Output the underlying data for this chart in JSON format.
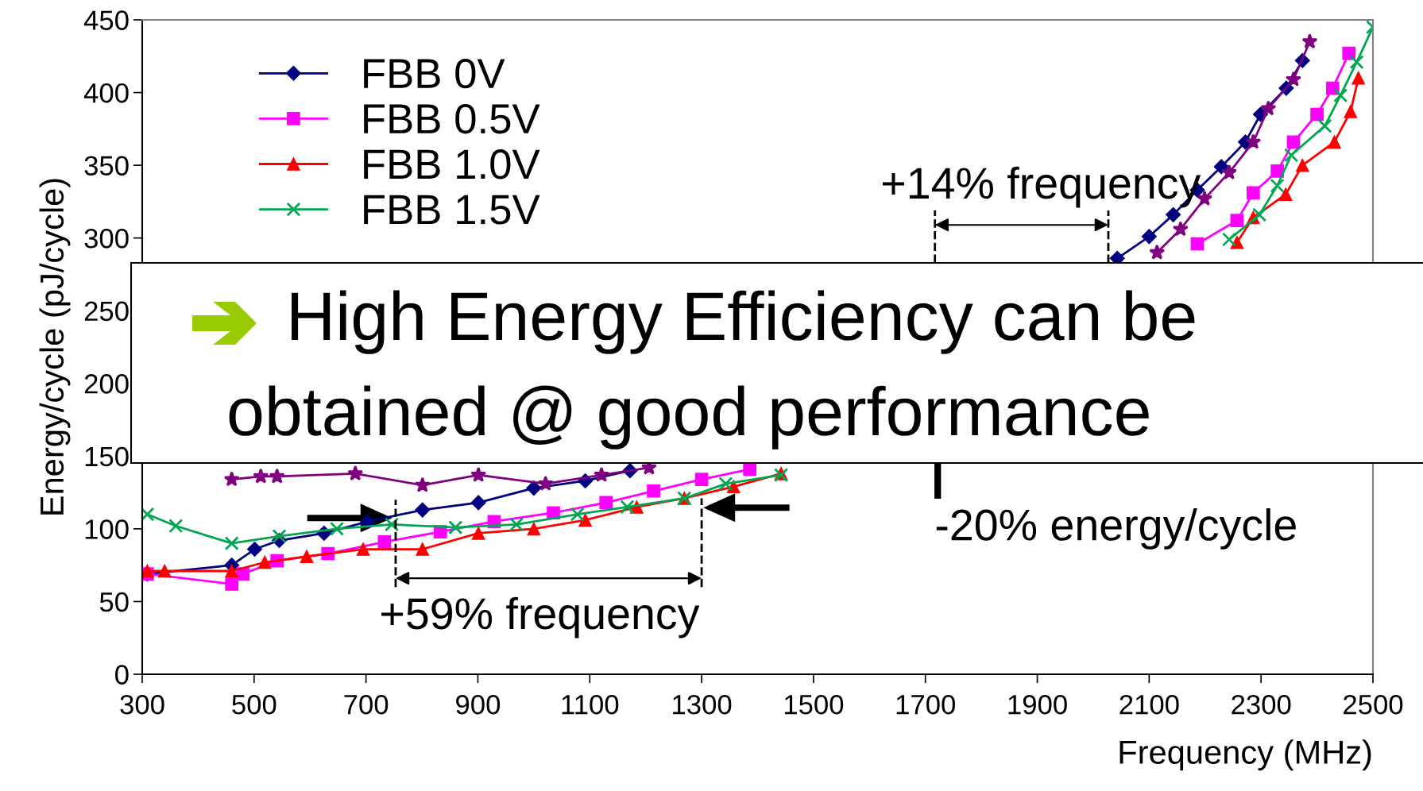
{
  "chart_data": {
    "type": "line",
    "xlabel": "Frequency (MHz)",
    "ylabel": "Energy/cycle (pJ/cycle)",
    "xlim": [
      300,
      2500
    ],
    "xticks": [
      300,
      500,
      700,
      900,
      1100,
      1300,
      1500,
      1700,
      1900,
      2100,
      2300,
      2500
    ],
    "ylim": [
      0,
      450
    ],
    "yticks": [
      0,
      50,
      100,
      150,
      200,
      250,
      300,
      350,
      400,
      450
    ],
    "grid": false,
    "legend": "top left",
    "line_style": "solid",
    "series": [
      {
        "name": "FBB 0V",
        "color": "#000080",
        "marker": "diamond",
        "x": [
          309,
          460,
          501,
          545,
          625,
          703,
          801,
          901,
          1000,
          1092,
          1172,
          null,
          2043,
          2100,
          2143,
          2186,
          2229,
          2272,
          2299,
          2345,
          2374
        ],
        "values": [
          69,
          75,
          86,
          92,
          97,
          105,
          113,
          118,
          128,
          133,
          140,
          null,
          286,
          301,
          316,
          333,
          349,
          366,
          385,
          403,
          422
        ]
      },
      {
        "name": "FBB 0.5V",
        "color": "#ff00ff",
        "marker": "square",
        "x": [
          309,
          460,
          480,
          541,
          632,
          733,
          833,
          929,
          1035,
          1129,
          1214,
          1300,
          1386,
          null,
          2186,
          2257,
          2286,
          2329,
          2358,
          2400,
          2428,
          2457
        ],
        "values": [
          69,
          62,
          69,
          78,
          83,
          91,
          98,
          105,
          111,
          118,
          126,
          134,
          141,
          null,
          296,
          312,
          331,
          346,
          366,
          385,
          403,
          427
        ]
      },
      {
        "name": "FBB 1.0V",
        "color": "#ff0000",
        "marker": "triangle",
        "x": [
          309,
          340,
          460,
          519,
          594,
          695,
          801,
          901,
          1000,
          1092,
          1184,
          1269,
          1357,
          1442,
          null,
          2257,
          2286,
          2344,
          2374,
          2431,
          2460,
          2474
        ],
        "values": [
          71,
          71,
          71,
          77,
          81,
          86,
          86,
          97,
          100,
          106,
          115,
          121,
          129,
          138,
          null,
          297,
          314,
          330,
          350,
          366,
          387,
          410
        ]
      },
      {
        "name": "FBB 1.5V",
        "color": "#00a651",
        "marker": "cross",
        "x": [
          309,
          360,
          460,
          545,
          648,
          746,
          860,
          969,
          1078,
          1167,
          1269,
          1343,
          1442,
          null,
          2243,
          2297,
          2329,
          2354,
          2414,
          2442,
          2471,
          2500
        ],
        "values": [
          110,
          102,
          90,
          95,
          100,
          103,
          101,
          103,
          110,
          115,
          121,
          131,
          137,
          null,
          299,
          316,
          336,
          357,
          377,
          398,
          421,
          445
        ]
      },
      {
        "color": "#800080",
        "marker": "star",
        "x": [
          460,
          512,
          541,
          681,
          801,
          901,
          1021,
          1121,
          1206,
          null,
          2114,
          2156,
          2199,
          2243,
          2286,
          2313,
          2358,
          2387
        ],
        "values": [
          134,
          136,
          136,
          138,
          130,
          137,
          131,
          137,
          142,
          null,
          290,
          306,
          327,
          345,
          366,
          389,
          409,
          435
        ]
      }
    ],
    "annotations": [
      "+14% frequency",
      {
        "text": "+59% frequency",
        "x": 1300,
        "y": 121
      },
      "-20% energy/cycle",
      "High Energy Efficiency can be",
      "obtained @ good performance"
    ]
  }
}
